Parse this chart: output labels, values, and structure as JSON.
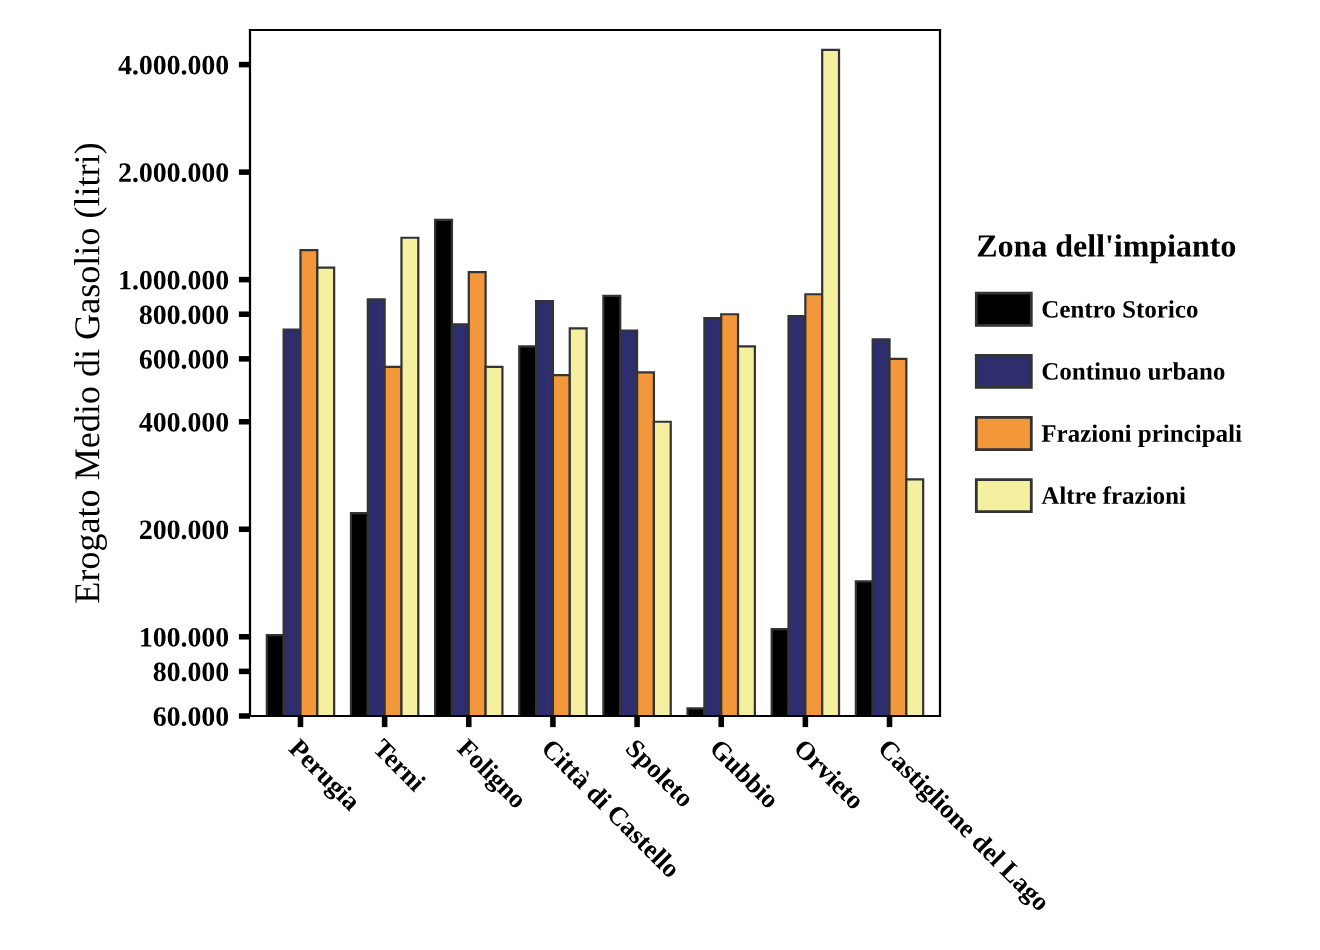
{
  "chart_data": {
    "type": "bar",
    "ylabel": "Erogato Medio di Gasolio (litri)",
    "legend_title": "Zona dell'impianto",
    "categories": [
      "Perugia",
      "Terni",
      "Foligno",
      "Città di Castello",
      "Spoleto",
      "Gubbio",
      "Orvieto",
      "Castiglione del Lago"
    ],
    "series": [
      {
        "name": "Centro Storico",
        "color": "#000000",
        "values": [
          101000,
          222000,
          1470000,
          650000,
          900000,
          63000,
          105000,
          143000
        ]
      },
      {
        "name": "Continuo urbano",
        "color": "#2e2e6e",
        "values": [
          725000,
          880000,
          750000,
          870000,
          720000,
          780000,
          790000,
          680000
        ]
      },
      {
        "name": "Frazioni principali",
        "color": "#f3973b",
        "values": [
          1210000,
          570000,
          1050000,
          540000,
          550000,
          800000,
          910000,
          600000
        ]
      },
      {
        "name": "Altre frazioni",
        "color": "#f5f0a0",
        "values": [
          1080000,
          1310000,
          570000,
          730000,
          400000,
          650000,
          4400000,
          276000
        ]
      }
    ],
    "log": true,
    "ylim": [
      60000,
      5000000
    ],
    "yticks": [
      {
        "value": 60000,
        "label": "60.000"
      },
      {
        "value": 80000,
        "label": "80.000"
      },
      {
        "value": 100000,
        "label": "100.000"
      },
      {
        "value": 200000,
        "label": "200.000"
      },
      {
        "value": 400000,
        "label": "400.000"
      },
      {
        "value": 600000,
        "label": "600.000"
      },
      {
        "value": 800000,
        "label": "800.000"
      },
      {
        "value": 1000000,
        "label": "1.000.000"
      },
      {
        "value": 2000000,
        "label": "2.000.000"
      },
      {
        "value": 4000000,
        "label": "4.000.000"
      }
    ],
    "grid": false,
    "legend": "right"
  }
}
